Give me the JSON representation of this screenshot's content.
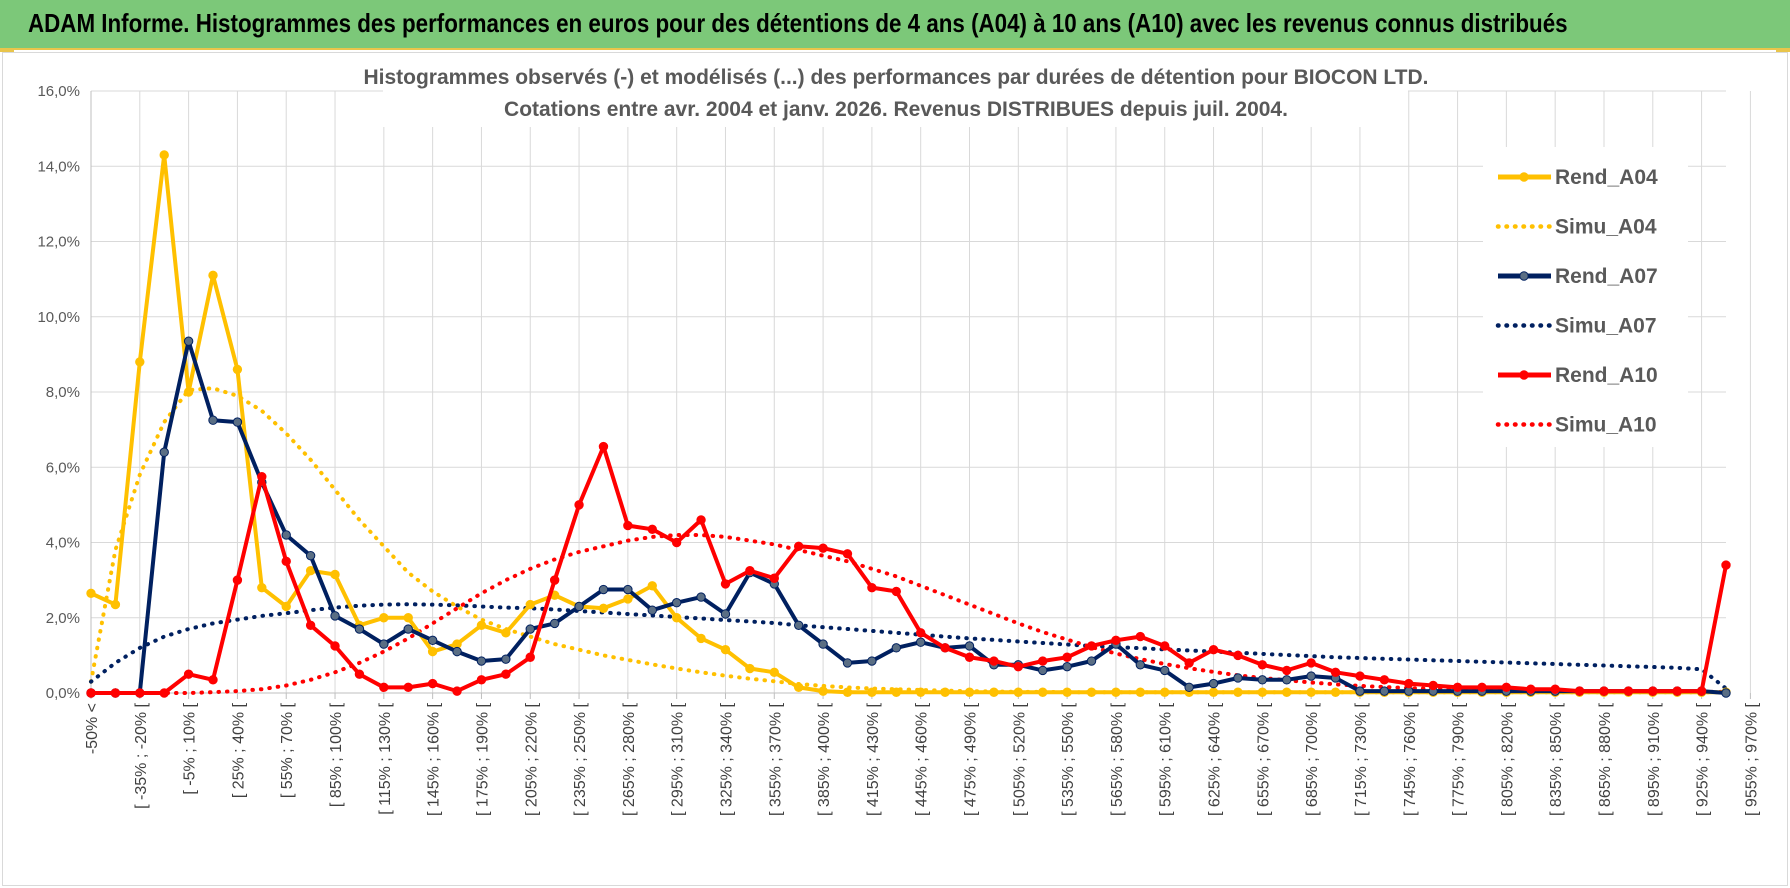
{
  "banner": {
    "title": "ADAM Informe. Histogrammes des performances en euros pour des détentions de 4 ans (A04) à 10 ans (A10) avec les revenus connus distribués"
  },
  "colors": {
    "banner_bg": "#7cc879",
    "banner_border": "#e9c54b",
    "a04": "#ffc000",
    "a07": "#002060",
    "a07_marker": "#5a6e84",
    "a10": "#ff0000",
    "grid": "#d9d9d9",
    "axis": "#bfbfbf"
  },
  "chart_data": {
    "type": "line",
    "title_lines": [
      "Histogrammes observés (-) et modélisés (...) des performances par durées de détention pour BIOCON LTD.",
      "Cotations entre avr. 2004 et janv. 2026. Revenus DISTRIBUES depuis juil. 2004."
    ],
    "ylim": [
      0,
      16
    ],
    "y_ticks": [
      "0,0%",
      "2,0%",
      "4,0%",
      "6,0%",
      "8,0%",
      "10,0%",
      "12,0%",
      "14,0%",
      "16,0%"
    ],
    "point_count": 68,
    "x_tick_labels": [
      "-50% <",
      "[ -35% ; -20% [",
      "[ -5% ; 10% [",
      "[ 25% ; 40% [",
      "[ 55% ; 70% [",
      "[ 85% ; 100% [",
      "[ 115% ; 130% [",
      "[ 145% ; 160% [",
      "[ 175% ; 190% [",
      "[ 205% ; 220% [",
      "[ 235% ; 250% [",
      "[ 265% ; 280% [",
      "[ 295% ; 310% [",
      "[ 325% ; 340% [",
      "[ 355% ; 370% [",
      "[ 385% ; 400% [",
      "[ 415% ; 430% [",
      "[ 445% ; 460% [",
      "[ 475% ; 490% [",
      "[ 505% ; 520% [",
      "[ 535% ; 550% [",
      "[ 565% ; 580% [",
      "[ 595% ; 610% [",
      "[ 625% ; 640% [",
      "[ 655% ; 670% [",
      "[ 685% ; 700% [",
      "[ 715% ; 730% [",
      "[ 745% ; 760% [",
      "[ 775% ; 790% [",
      "[ 805% ; 820% [",
      "[ 835% ; 850% [",
      "[ 865% ; 880% [",
      "[ 895% ; 910% [",
      "[ 925% ; 940% [",
      "[ 955% ; 970% ["
    ],
    "legend_position": "right",
    "series": [
      {
        "name": "Rend_A04",
        "style": "solid",
        "markers": true,
        "color_key": "a04",
        "values": [
          2.65,
          2.35,
          8.8,
          14.3,
          8.0,
          11.1,
          8.6,
          2.8,
          2.3,
          3.25,
          3.15,
          1.8,
          2.0,
          2.0,
          1.1,
          1.3,
          1.8,
          1.6,
          2.35,
          2.6,
          2.3,
          2.25,
          2.5,
          2.85,
          2.0,
          1.45,
          1.15,
          0.65,
          0.55,
          0.15,
          0.05,
          0.02,
          0.02,
          0.02,
          0.02,
          0.02,
          0.02,
          0.02,
          0.02,
          0.02,
          0.02,
          0.02,
          0.02,
          0.02,
          0.02,
          0.02,
          0.02,
          0.02,
          0.02,
          0.02,
          0.02,
          0.02,
          0.02,
          0.02,
          0.02,
          0.02,
          0.02,
          0.02,
          0.02,
          0.02,
          0.02,
          0.02,
          0.02,
          0.02,
          0.02,
          0.02,
          0.02,
          0.02
        ]
      },
      {
        "name": "Simu_A04",
        "style": "dotted",
        "markers": false,
        "color_key": "a04",
        "values": [
          0.3,
          3.8,
          5.8,
          7.2,
          8.05,
          8.1,
          7.9,
          7.5,
          6.9,
          6.2,
          5.4,
          4.6,
          3.9,
          3.2,
          2.7,
          2.3,
          1.95,
          1.7,
          1.5,
          1.3,
          1.15,
          1.0,
          0.88,
          0.76,
          0.65,
          0.55,
          0.46,
          0.38,
          0.31,
          0.24,
          0.19,
          0.15,
          0.12,
          0.1,
          0.08,
          0.06,
          0.05,
          0.04,
          0.03,
          0.03,
          0.02,
          0.02,
          0.02,
          0.02,
          0.02,
          0.02,
          0.02,
          0.02,
          0.02,
          0.02,
          0.02,
          0.02,
          0.02,
          0.02,
          0.02,
          0.02,
          0.02,
          0.02,
          0.02,
          0.02,
          0.02,
          0.02,
          0.02,
          0.02,
          0.02,
          0.02,
          0.02,
          0.02
        ]
      },
      {
        "name": "Rend_A07",
        "style": "solid",
        "markers": true,
        "color_key": "a07",
        "values": [
          0.0,
          0.0,
          0.0,
          6.4,
          9.35,
          7.25,
          7.2,
          5.6,
          4.2,
          3.65,
          2.05,
          1.7,
          1.3,
          1.7,
          1.4,
          1.1,
          0.85,
          0.9,
          1.7,
          1.85,
          2.3,
          2.75,
          2.75,
          2.2,
          2.4,
          2.55,
          2.1,
          3.2,
          2.9,
          1.8,
          1.3,
          0.8,
          0.85,
          1.2,
          1.35,
          1.2,
          1.25,
          0.75,
          0.75,
          0.6,
          0.7,
          0.85,
          1.3,
          0.75,
          0.6,
          0.15,
          0.25,
          0.4,
          0.35,
          0.35,
          0.45,
          0.4,
          0.05,
          0.05,
          0.05,
          0.05,
          0.05,
          0.05,
          0.05,
          0.05,
          0.05,
          0.05,
          0.05,
          0.05,
          0.05,
          0.05,
          0.05,
          0.0
        ]
      },
      {
        "name": "Simu_A07",
        "style": "dotted",
        "markers": false,
        "color_key": "a07",
        "values": [
          0.3,
          0.8,
          1.2,
          1.5,
          1.7,
          1.85,
          1.95,
          2.05,
          2.12,
          2.2,
          2.27,
          2.32,
          2.35,
          2.36,
          2.35,
          2.33,
          2.3,
          2.27,
          2.25,
          2.22,
          2.18,
          2.14,
          2.1,
          2.06,
          2.02,
          1.98,
          1.94,
          1.9,
          1.86,
          1.8,
          1.75,
          1.7,
          1.65,
          1.6,
          1.55,
          1.5,
          1.45,
          1.41,
          1.37,
          1.33,
          1.29,
          1.25,
          1.22,
          1.19,
          1.16,
          1.13,
          1.1,
          1.07,
          1.04,
          1.01,
          0.98,
          0.95,
          0.93,
          0.91,
          0.89,
          0.87,
          0.85,
          0.83,
          0.81,
          0.79,
          0.77,
          0.75,
          0.73,
          0.71,
          0.69,
          0.67,
          0.63,
          0.12
        ]
      },
      {
        "name": "Rend_A10",
        "style": "solid",
        "markers": true,
        "color_key": "a10",
        "values": [
          0.0,
          0.0,
          0.0,
          0.0,
          0.5,
          0.35,
          3.0,
          5.75,
          3.5,
          1.8,
          1.25,
          0.5,
          0.15,
          0.15,
          0.25,
          0.05,
          0.35,
          0.5,
          0.95,
          3.0,
          5.0,
          6.55,
          4.45,
          4.35,
          4.0,
          4.6,
          2.9,
          3.25,
          3.05,
          3.9,
          3.85,
          3.7,
          2.8,
          2.7,
          1.6,
          1.2,
          0.95,
          0.85,
          0.7,
          0.85,
          0.95,
          1.25,
          1.4,
          1.5,
          1.25,
          0.8,
          1.15,
          1.0,
          0.75,
          0.6,
          0.8,
          0.55,
          0.45,
          0.35,
          0.25,
          0.2,
          0.15,
          0.15,
          0.15,
          0.1,
          0.1,
          0.05,
          0.05,
          0.05,
          0.05,
          0.05,
          0.05,
          3.4
        ]
      },
      {
        "name": "Simu_A10",
        "style": "dotted",
        "markers": false,
        "color_key": "a10",
        "values": [
          0.0,
          0.0,
          0.0,
          0.0,
          0.0,
          0.02,
          0.05,
          0.1,
          0.2,
          0.35,
          0.55,
          0.8,
          1.1,
          1.45,
          1.85,
          2.25,
          2.65,
          3.0,
          3.3,
          3.55,
          3.75,
          3.9,
          4.05,
          4.15,
          4.2,
          4.2,
          4.15,
          4.05,
          3.95,
          3.8,
          3.65,
          3.5,
          3.3,
          3.1,
          2.85,
          2.6,
          2.35,
          2.1,
          1.85,
          1.62,
          1.42,
          1.22,
          1.05,
          0.9,
          0.77,
          0.66,
          0.56,
          0.47,
          0.4,
          0.34,
          0.28,
          0.23,
          0.19,
          0.16,
          0.13,
          0.11,
          0.09,
          0.07,
          0.06,
          0.05,
          0.04,
          0.04,
          0.03,
          0.03,
          0.03,
          0.03,
          0.03,
          0.03
        ]
      }
    ]
  }
}
